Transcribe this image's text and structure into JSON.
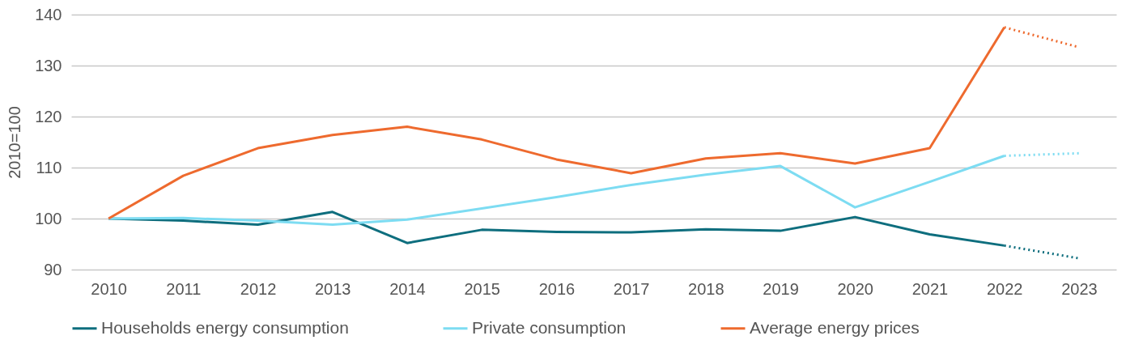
{
  "chart_data": {
    "type": "line",
    "ylabel": "2010=100",
    "categories": [
      "2010",
      "2011",
      "2012",
      "2013",
      "2014",
      "2015",
      "2016",
      "2017",
      "2018",
      "2019",
      "2020",
      "2021",
      "2022",
      "2023"
    ],
    "series": [
      {
        "name": "Households energy consumption",
        "color": "#0e6e7e",
        "line_style": "solid",
        "values": [
          100,
          99.6,
          98.8,
          101.3,
          95.2,
          97.8,
          97.4,
          97.3,
          97.9,
          97.6,
          100.3,
          96.9,
          94.7,
          null
        ]
      },
      {
        "name": "Private consumption",
        "color": "#7ddcf2",
        "line_style": "solid",
        "values": [
          100,
          100.1,
          99.6,
          98.8,
          99.8,
          102,
          104.2,
          106.6,
          108.6,
          110.3,
          102.2,
          107.2,
          112.3,
          null
        ]
      },
      {
        "name": "Average energy prices",
        "color": "#ee6a2e",
        "line_style": "solid",
        "values": [
          100,
          108.4,
          113.8,
          116.4,
          118,
          115.5,
          111.6,
          108.9,
          111.8,
          112.8,
          110.8,
          113.8,
          137.5,
          null
        ]
      },
      {
        "color": "#0e6e7e",
        "line_style": "dotted",
        "values": [
          null,
          null,
          null,
          null,
          null,
          null,
          null,
          null,
          null,
          null,
          null,
          null,
          94.7,
          92.2
        ]
      },
      {
        "color": "#7ddcf2",
        "line_style": "dotted",
        "values": [
          null,
          null,
          null,
          null,
          null,
          null,
          null,
          null,
          null,
          null,
          null,
          null,
          112.3,
          112.8
        ]
      },
      {
        "color": "#ee6a2e",
        "line_style": "dotted",
        "values": [
          null,
          null,
          null,
          null,
          null,
          null,
          null,
          null,
          null,
          null,
          null,
          null,
          137.5,
          133.6
        ]
      }
    ],
    "ylim": [
      90,
      140
    ],
    "yticks": [
      90,
      100,
      110,
      120,
      130,
      140
    ],
    "grid": "y",
    "legend": "bottom"
  }
}
